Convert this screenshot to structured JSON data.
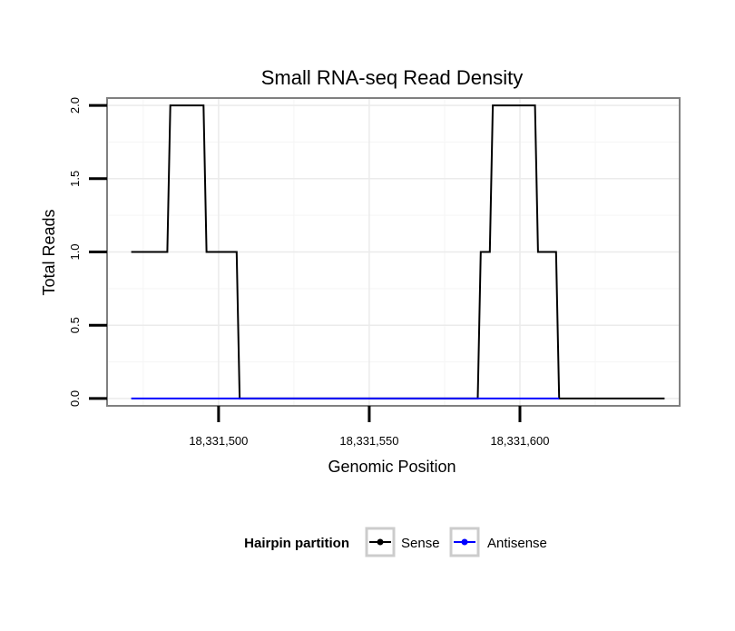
{
  "chart_data": {
    "type": "line",
    "title": "Small RNA-seq Read Density",
    "xlabel": "Genomic Position",
    "ylabel": "Total Reads",
    "xlim": [
      18331463,
      18331653
    ],
    "ylim": [
      -0.05,
      2.05
    ],
    "x_ticks": [
      18331500,
      18331550,
      18331600
    ],
    "x_tick_labels": [
      "18,331,500",
      "18,331,550",
      "18,331,600"
    ],
    "y_ticks": [
      0,
      0.5,
      1,
      1.5,
      2
    ],
    "y_tick_labels": [
      "0.0",
      "0.5",
      "1.0",
      "1.5",
      "2.0"
    ],
    "grid": true,
    "legend": {
      "title": "Hairpin partition",
      "position": "bottom",
      "entries": [
        "Sense",
        "Antisense"
      ]
    },
    "series": [
      {
        "name": "Sense",
        "color": "#000000",
        "x": [
          18331471,
          18331483,
          18331484,
          18331495,
          18331496,
          18331506,
          18331507,
          18331586,
          18331587,
          18331590,
          18331591,
          18331605,
          18331606,
          18331612,
          18331613,
          18331648
        ],
        "y": [
          1,
          1,
          2,
          2,
          1,
          1,
          0,
          0,
          1,
          1,
          2,
          2,
          1,
          1,
          0,
          0
        ]
      },
      {
        "name": "Antisense",
        "color": "#0000ff",
        "x": [
          18331471,
          18331507,
          18331586,
          18331613
        ],
        "y": [
          0,
          0,
          0,
          0
        ]
      }
    ]
  }
}
